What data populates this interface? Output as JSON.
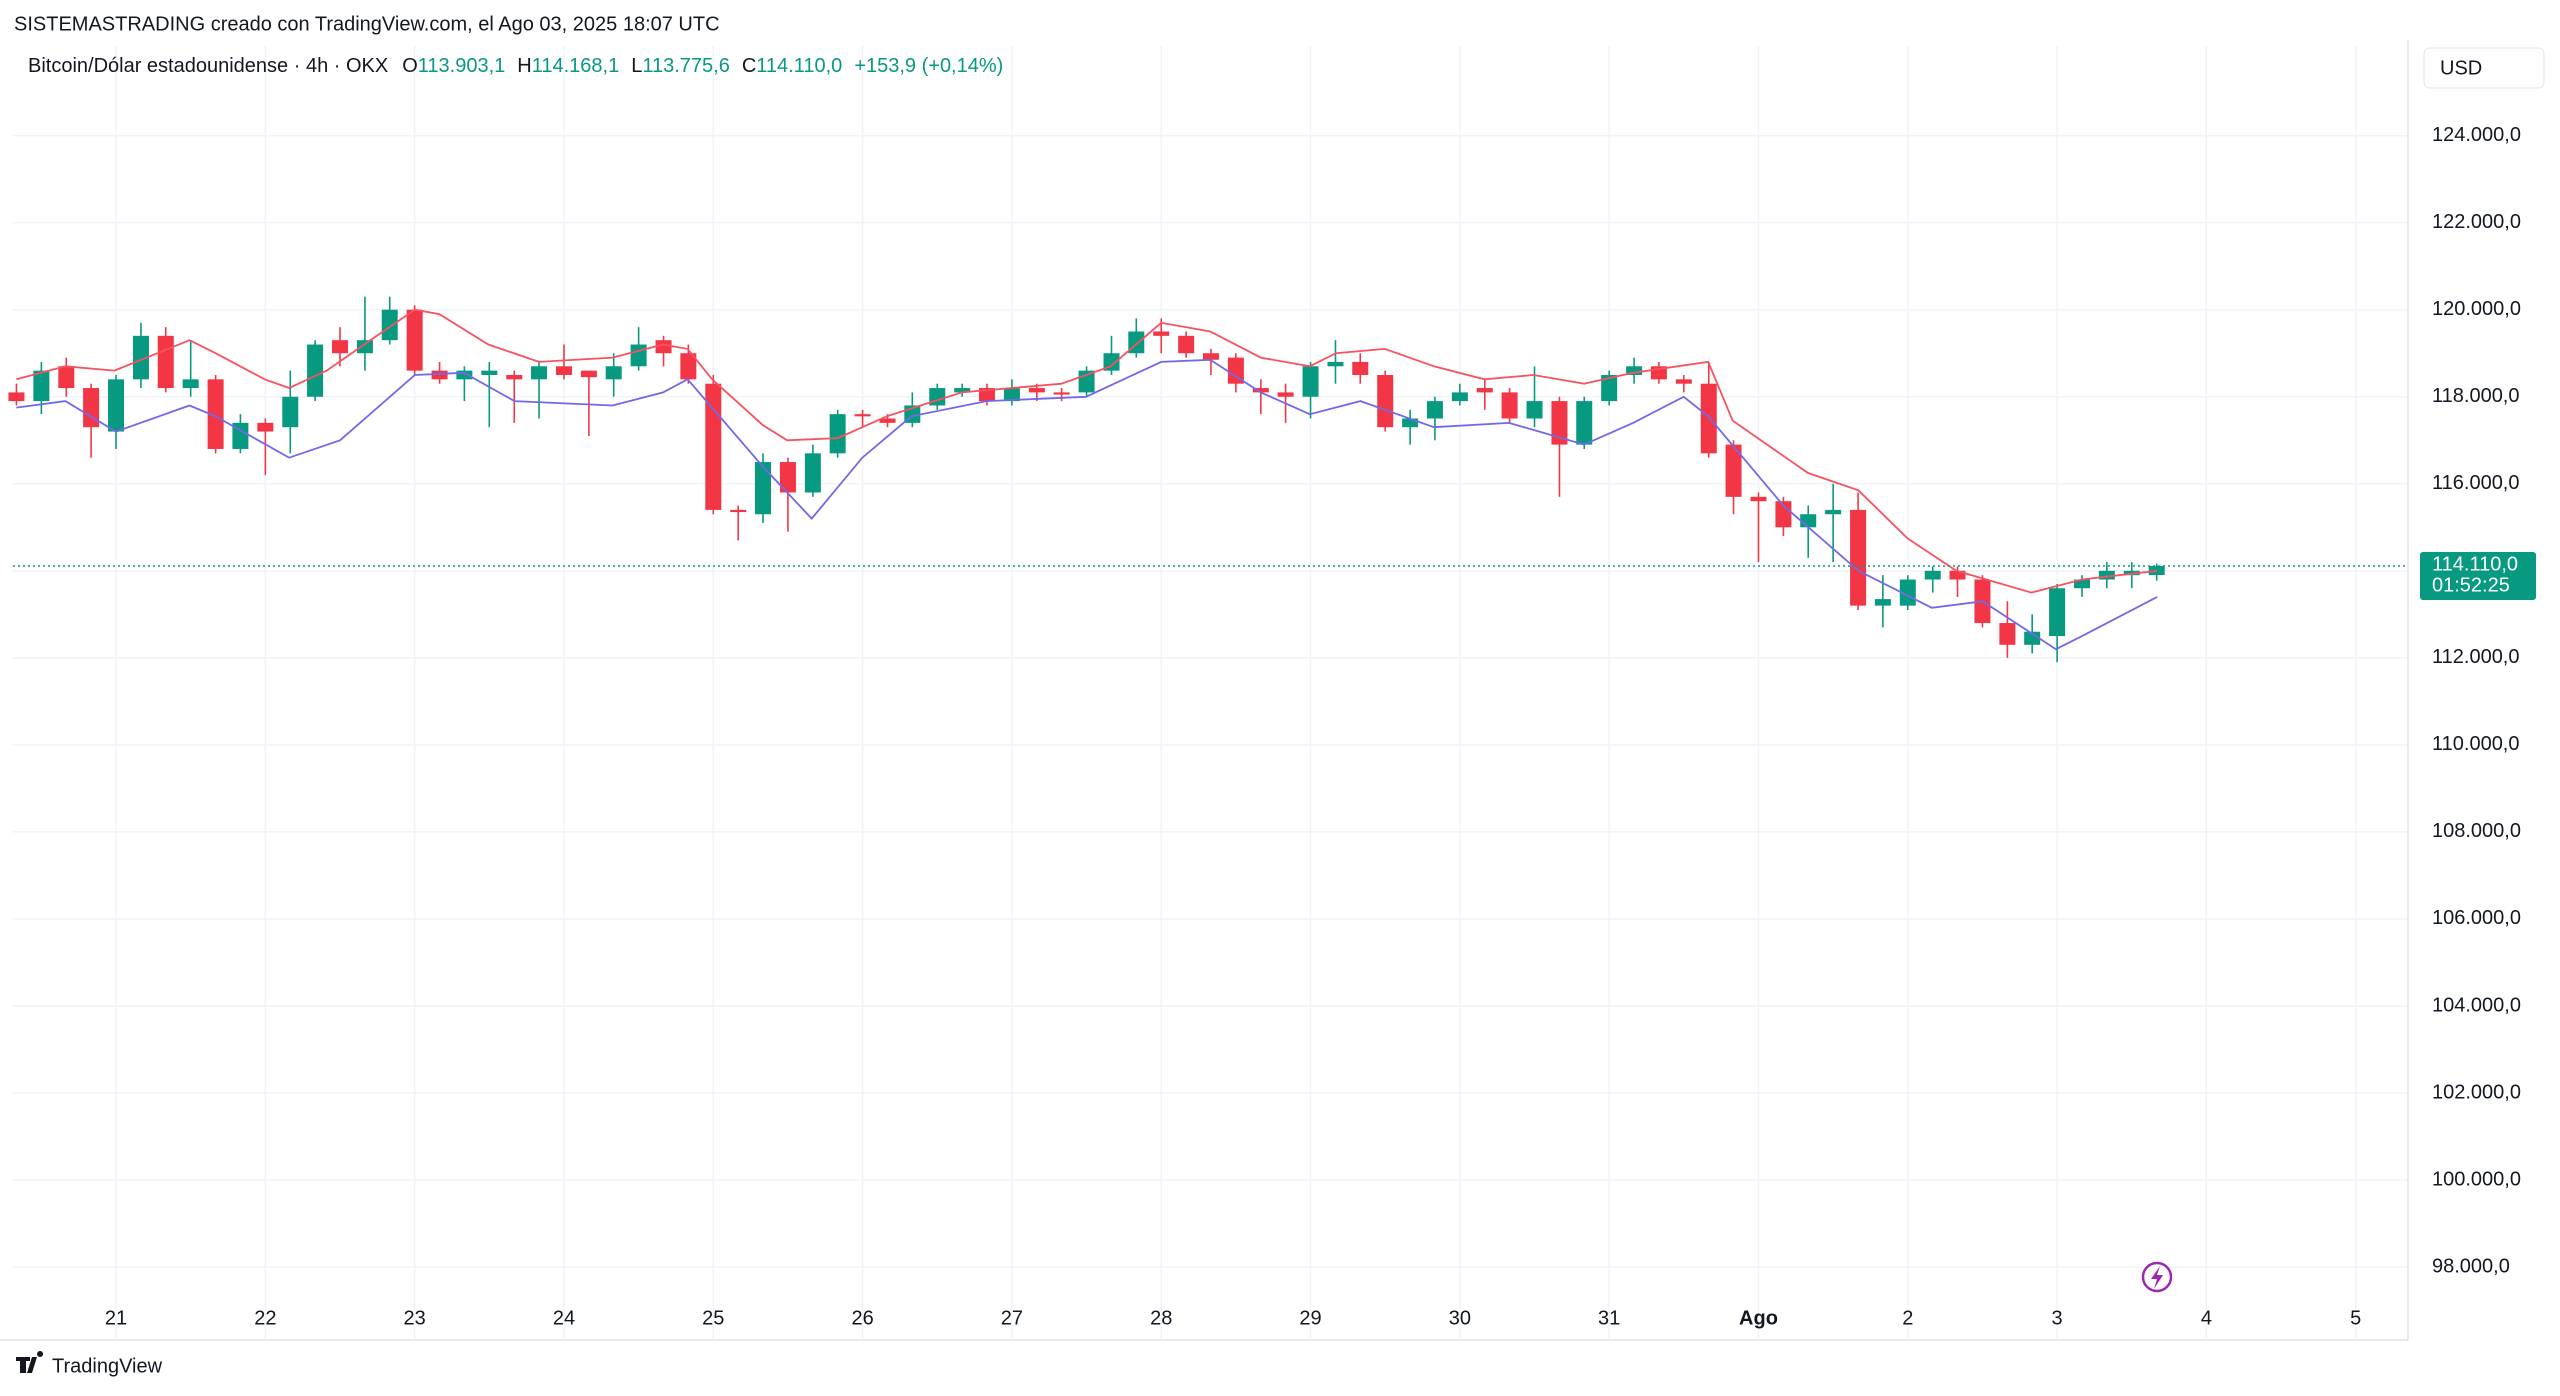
{
  "header": "SISTEMASTRADING creado con TradingView.com, el Ago 03, 2025 18:07 UTC",
  "legend": {
    "symbol": "Bitcoin/Dólar estadounidense · 4h · OKX",
    "items": [
      {
        "key": "O",
        "label": "113.903,1"
      },
      {
        "key": "H",
        "label": "114.168,1"
      },
      {
        "key": "L",
        "label": "113.775,6"
      },
      {
        "key": "C",
        "label": "114.110,0"
      }
    ],
    "change": "+153,9 (+0,14%)"
  },
  "currency": "USD",
  "footer": "TradingView",
  "chart_data": {
    "type": "candlestick",
    "up_color": "#089981",
    "down_color": "#f23645",
    "grid": true,
    "x": [
      20.333,
      20.5,
      20.667,
      20.833,
      21,
      21.167,
      21.333,
      21.5,
      21.667,
      21.833,
      22,
      22.167,
      22.333,
      22.5,
      22.667,
      22.833,
      23,
      23.167,
      23.333,
      23.5,
      23.667,
      23.833,
      24,
      24.167,
      24.333,
      24.5,
      24.667,
      24.833,
      25,
      25.167,
      25.333,
      25.5,
      25.667,
      25.833,
      26,
      26.167,
      26.333,
      26.5,
      26.667,
      26.833,
      27,
      27.167,
      27.333,
      27.5,
      27.667,
      27.833,
      28,
      28.167,
      28.333,
      28.5,
      28.667,
      28.833,
      29,
      29.167,
      29.333,
      29.5,
      29.667,
      29.833,
      30,
      30.167,
      30.333,
      30.5,
      30.667,
      30.833,
      31,
      31.167,
      31.333,
      31.5,
      31.667,
      31.833,
      32,
      32.167,
      32.333,
      32.5,
      32.667,
      32.833,
      33,
      33.167,
      33.333,
      33.5,
      33.667,
      33.833,
      34,
      34.167,
      34.333,
      34.5,
      34.667
    ],
    "open": [
      118100,
      117900,
      118700,
      118200,
      117200,
      118400,
      119400,
      118200,
      118400,
      116800,
      117400,
      117300,
      118000,
      119300,
      119000,
      119300,
      120000,
      118600,
      118400,
      118500,
      118500,
      118400,
      118700,
      118600,
      118400,
      118700,
      119300,
      119000,
      118300,
      115400,
      115300,
      116500,
      115800,
      116700,
      117600,
      117500,
      117400,
      117800,
      118100,
      118200,
      117900,
      118200,
      118100,
      118100,
      118600,
      119000,
      119500,
      119400,
      119000,
      118900,
      118200,
      118100,
      118000,
      118700,
      118800,
      118500,
      117300,
      117500,
      117900,
      118200,
      118100,
      117500,
      117900,
      116900,
      117900,
      118500,
      118700,
      118400,
      118300,
      116900,
      115700,
      115600,
      115000,
      115300,
      115400,
      113200,
      113200,
      113800,
      114000,
      113800,
      112800,
      112300,
      112500,
      113600,
      113800,
      113900,
      113903.1
    ],
    "high": [
      118300,
      118800,
      118900,
      118300,
      118500,
      119700,
      119600,
      119300,
      118500,
      117600,
      117500,
      118600,
      119300,
      119600,
      120300,
      120300,
      120100,
      118800,
      118700,
      118800,
      118600,
      118800,
      119200,
      118600,
      119000,
      119600,
      119400,
      119200,
      118500,
      115500,
      116700,
      116600,
      116900,
      117700,
      117700,
      117600,
      118100,
      118300,
      118300,
      118300,
      118400,
      118300,
      118200,
      118700,
      119400,
      119800,
      119800,
      119500,
      119100,
      119000,
      118400,
      118300,
      118800,
      119300,
      119000,
      118600,
      117700,
      118000,
      118300,
      118400,
      118200,
      118700,
      118000,
      118000,
      118600,
      118900,
      118800,
      118500,
      118800,
      117000,
      115800,
      115700,
      115500,
      116000,
      115800,
      113900,
      113900,
      114100,
      114100,
      113900,
      113300,
      113000,
      113700,
      113900,
      114200,
      114200,
      114168.1
    ],
    "low": [
      117800,
      117600,
      118000,
      116600,
      116800,
      118200,
      118100,
      118000,
      116700,
      116700,
      116200,
      116700,
      117900,
      118700,
      118600,
      119200,
      118500,
      118300,
      117900,
      117300,
      117400,
      117500,
      118400,
      117100,
      118000,
      118600,
      118700,
      118300,
      115300,
      114700,
      115100,
      114900,
      115700,
      116600,
      117300,
      117300,
      117300,
      117700,
      118000,
      117800,
      117800,
      117900,
      117900,
      118000,
      118500,
      118900,
      119000,
      118900,
      118500,
      118100,
      117600,
      117400,
      117500,
      118300,
      118300,
      117200,
      116900,
      117000,
      117800,
      117700,
      117400,
      117300,
      115700,
      116800,
      117800,
      118300,
      118300,
      118100,
      116600,
      115300,
      114200,
      114800,
      114300,
      114200,
      113100,
      112700,
      113100,
      113500,
      113400,
      112700,
      112000,
      112100,
      111900,
      113400,
      113600,
      113600,
      113775.6
    ],
    "close": [
      117900,
      118600,
      118200,
      117300,
      118400,
      119400,
      118200,
      118400,
      116800,
      117400,
      117200,
      118000,
      119200,
      119000,
      119300,
      120000,
      118600,
      118400,
      118600,
      118600,
      118400,
      118700,
      118500,
      118450,
      118700,
      119200,
      119000,
      118400,
      115400,
      115350,
      116500,
      115800,
      116700,
      117600,
      117550,
      117400,
      117800,
      118200,
      118200,
      117900,
      118200,
      118100,
      118050,
      118600,
      119000,
      119500,
      119400,
      119000,
      118850,
      118300,
      118100,
      118000,
      118700,
      118800,
      118500,
      117300,
      117500,
      117900,
      118100,
      118100,
      117500,
      117900,
      116900,
      117900,
      118500,
      118700,
      118400,
      118300,
      116700,
      115700,
      115600,
      115000,
      115300,
      115400,
      113200,
      113350,
      113800,
      114000,
      113800,
      112800,
      112300,
      112600,
      113600,
      113800,
      114000,
      114000,
      114110.0
    ],
    "lines": [
      {
        "color": "#f7525f",
        "x": [
          20.333,
          20.661,
          20.989,
          21.492,
          21.667,
          21.995,
          22.159,
          22.411,
          22.662,
          23.001,
          23.165,
          23.493,
          23.833,
          24.325,
          24.664,
          24.828,
          24.992,
          25.331,
          25.495,
          25.834,
          26.162,
          26.665,
          27.332,
          27.661,
          28.0,
          28.328,
          28.667,
          28.995,
          29.17,
          29.498,
          29.826,
          30.165,
          30.493,
          30.832,
          31.16,
          31.663,
          31.827,
          32.33,
          32.669,
          32.997,
          33.325,
          33.828,
          34.167,
          34.67
        ],
        "values": [
          118400,
          118700,
          118600,
          119300,
          119000,
          118400,
          118200,
          118600,
          119200,
          120000,
          119900,
          119200,
          118800,
          118900,
          119200,
          119100,
          118400,
          117350,
          117000,
          117050,
          117550,
          118100,
          118300,
          118700,
          119700,
          119500,
          118900,
          118700,
          119000,
          119100,
          118700,
          118400,
          118500,
          118300,
          118550,
          118800,
          117450,
          116250,
          115850,
          114750,
          114000,
          113500,
          113800,
          114000
        ]
      },
      {
        "color": "#7268e8",
        "x": [
          20.333,
          20.661,
          20.999,
          21.492,
          21.667,
          22.159,
          22.5,
          23.001,
          23.33,
          23.669,
          24.325,
          24.664,
          24.828,
          25.331,
          25.659,
          25.998,
          26.326,
          26.829,
          27.496,
          28.0,
          28.328,
          28.667,
          28.995,
          29.334,
          29.826,
          30.329,
          30.832,
          31.16,
          31.499,
          31.663,
          32.166,
          32.669,
          33.161,
          33.5,
          33.992,
          34.167,
          34.67
        ],
        "values": [
          117750,
          117900,
          117200,
          117800,
          117550,
          116600,
          117000,
          118500,
          118550,
          117900,
          117800,
          118100,
          118400,
          116400,
          115200,
          116600,
          117550,
          117900,
          118000,
          118800,
          118850,
          118100,
          117600,
          117900,
          117300,
          117400,
          116900,
          117400,
          118000,
          117550,
          115500,
          114000,
          113150,
          113300,
          112200,
          112500,
          113400
        ]
      }
    ],
    "last_price": {
      "value": 114110,
      "label": "114.110,0",
      "countdown": "01:52:25"
    },
    "xlim": [
      20.31,
      36.35
    ],
    "xticks": [
      21,
      22,
      23,
      24,
      25,
      26,
      27,
      28,
      29,
      30,
      31,
      {
        "value": 32,
        "label": "Ago"
      },
      {
        "value": 33,
        "label": "2"
      },
      {
        "value": 34,
        "label": "3"
      },
      {
        "value": 35,
        "label": "4"
      },
      {
        "value": 36,
        "label": "5"
      }
    ],
    "ylim": [
      97290,
      126060
    ],
    "yticks": [
      {
        "value": 98000,
        "label": "98.000,0"
      },
      {
        "value": 100000,
        "label": "100.000,0"
      },
      {
        "value": 102000,
        "label": "102.000,0"
      },
      {
        "value": 104000,
        "label": "104.000,0"
      },
      {
        "value": 106000,
        "label": "106.000,0"
      },
      {
        "value": 108000,
        "label": "108.000,0"
      },
      {
        "value": 110000,
        "label": "110.000,0"
      },
      {
        "value": 112000,
        "label": "112.000,0"
      },
      {
        "value": 114000,
        "label": "114.000,0"
      },
      {
        "value": 116000,
        "label": "116.000,0"
      },
      {
        "value": 118000,
        "label": "118.000,0"
      },
      {
        "value": 120000,
        "label": "120.000,0"
      },
      {
        "value": 122000,
        "label": "122.000,0"
      },
      {
        "value": 124000,
        "label": "124.000,0"
      }
    ]
  }
}
